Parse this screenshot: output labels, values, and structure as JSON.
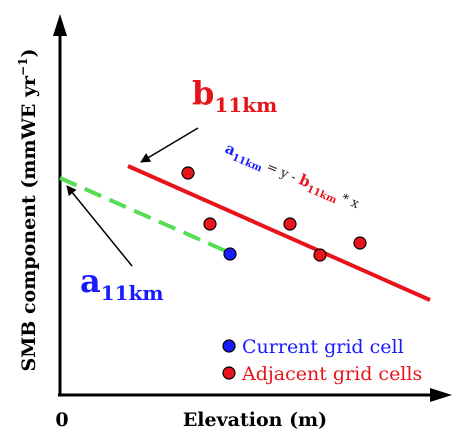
{
  "axes": {
    "ylabel": "SMB component (mmWE yr",
    "ylabel_sup": "−1",
    "ylabel_close": ")",
    "xlabel": "Elevation (m)",
    "origin_label": "0"
  },
  "labels": {
    "b_main": "b",
    "b_sub": "11km",
    "a_main": "a",
    "a_sub": "11km"
  },
  "equation": {
    "a_main": "a",
    "a_sub": "11km",
    "mid": " = y - ",
    "b_main": "b",
    "b_sub": "11km",
    "tail": " * x"
  },
  "legend": {
    "current": "Current grid cell",
    "adjacent": "Adjacent grid cells"
  },
  "colors": {
    "axis": "#000000",
    "red": "#e8141c",
    "blue": "#1a1aff",
    "green": "#55dd55",
    "text": "#000000"
  }
}
